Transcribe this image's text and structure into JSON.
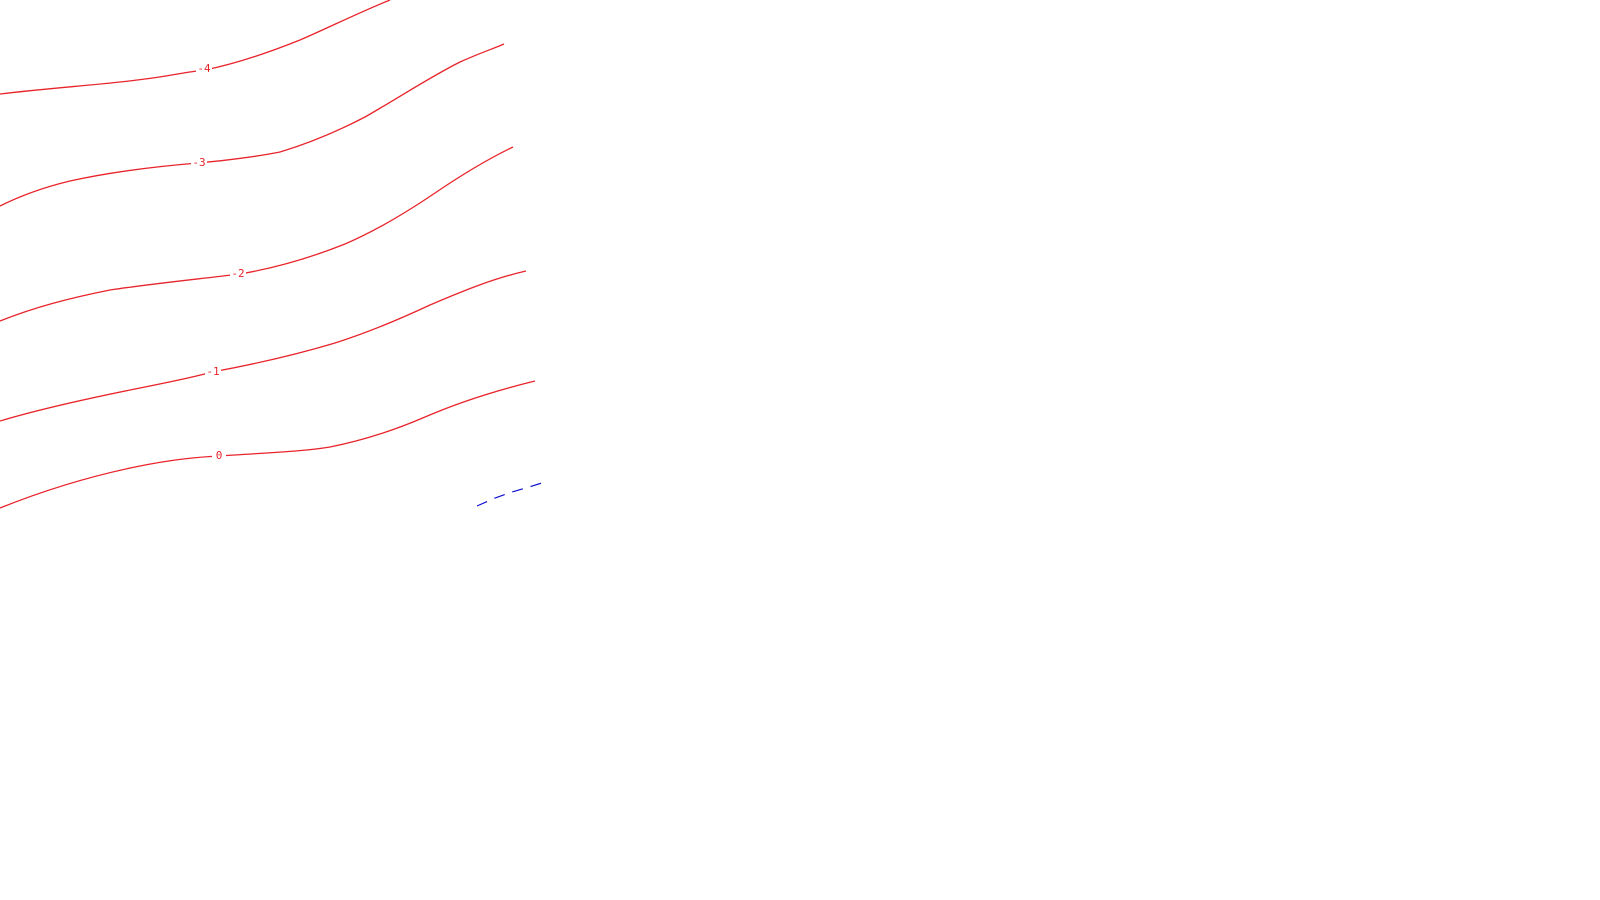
{
  "map": {
    "contours": [
      {
        "value": "-4",
        "label": "-4"
      },
      {
        "value": "-3",
        "label": "-3"
      },
      {
        "value": "-2",
        "label": "-2"
      },
      {
        "value": "-1",
        "label": "-1"
      },
      {
        "value": "0",
        "label": "0"
      }
    ],
    "colors": {
      "contour": "#e8242b",
      "dashed_line": "#1010d0",
      "background": "#ffffff"
    }
  }
}
